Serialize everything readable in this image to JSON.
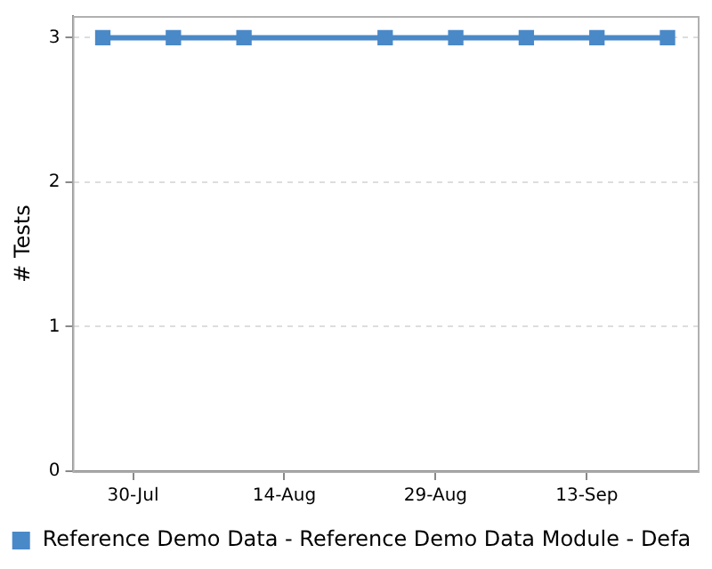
{
  "chart_data": {
    "type": "line",
    "ylabel": "# Tests",
    "x": [
      "--07-27",
      "--08-03",
      "--08-10",
      "--08-24",
      "--08-31",
      "--09-07",
      "--09-14",
      "--09-21"
    ],
    "series": [
      {
        "name": "Reference Demo Data - Reference Demo Data Module - Defa",
        "color": "#4a89c8",
        "values": [
          3,
          3,
          3,
          3,
          3,
          3,
          3,
          3
        ]
      }
    ],
    "xlim": [
      "--07-24",
      "--09-24"
    ],
    "xticks": [
      {
        "value": "--07-30",
        "label": "30-Jul"
      },
      {
        "value": "--08-14",
        "label": "14-Aug"
      },
      {
        "value": "--08-29",
        "label": "29-Aug"
      },
      {
        "value": "--09-13",
        "label": "13-Sep"
      }
    ],
    "ylim": [
      0,
      3.15
    ],
    "yticks": [
      0,
      1,
      2,
      3
    ],
    "grid": "y",
    "legend": "bottom",
    "marker": "square",
    "line_style": "solid"
  }
}
